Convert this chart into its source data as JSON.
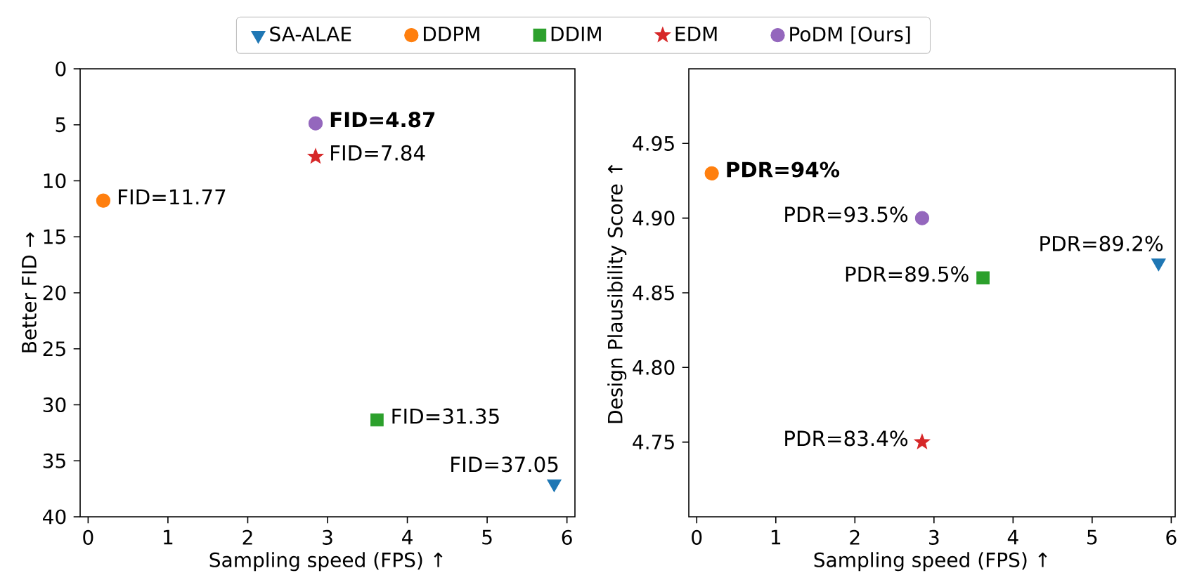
{
  "chart_data": [
    {
      "type": "scatter",
      "xlabel": "Sampling speed (FPS)  ↑",
      "ylabel": "Better FID →",
      "xlim": [
        -0.1,
        6.1
      ],
      "ylim": [
        40,
        0
      ],
      "xticks": [
        0,
        1,
        2,
        3,
        4,
        5,
        6
      ],
      "yticks": [
        0,
        5,
        10,
        15,
        20,
        25,
        30,
        35,
        40
      ],
      "legend": "top",
      "series": [
        {
          "name": "SA-ALAE",
          "color": "#1f77b4",
          "marker": "triangle",
          "x": [
            5.84
          ],
          "values": [
            37.05
          ],
          "value_labels": [
            "FID=37.05"
          ]
        },
        {
          "name": "DDPM",
          "color": "#ff7f0e",
          "marker": "circle",
          "x": [
            0.19
          ],
          "values": [
            11.77
          ],
          "value_labels": [
            "FID=11.77"
          ]
        },
        {
          "name": "DDIM",
          "color": "#2ca02c",
          "marker": "square",
          "x": [
            3.62
          ],
          "values": [
            31.35
          ],
          "value_labels": [
            "FID=31.35"
          ]
        },
        {
          "name": "EDM",
          "color": "#d62728",
          "marker": "star",
          "x": [
            2.85
          ],
          "values": [
            7.84
          ],
          "value_labels": [
            "FID=7.84"
          ]
        },
        {
          "name": "PoDM [Ours]",
          "color": "#9467bd",
          "marker": "circle",
          "x": [
            2.85
          ],
          "values": [
            4.87
          ],
          "value_labels": [
            "**FID=4.87**"
          ]
        }
      ]
    },
    {
      "type": "scatter",
      "xlabel": "Sampling speed (FPS)  ↑",
      "ylabel": "Design Plausibility Score ↑",
      "xlim": [
        -0.1,
        6.05
      ],
      "ylim": [
        4.7,
        5.0
      ],
      "xticks": [
        0,
        1,
        2,
        3,
        4,
        5,
        6
      ],
      "yticks": [
        4.75,
        {
          "value": 4.8,
          "label": "4.80"
        },
        4.85,
        {
          "value": 4.9,
          "label": "4.90"
        },
        4.95
      ],
      "series": [
        {
          "color": "#1f77b4",
          "marker": "triangle",
          "x": [
            5.84
          ],
          "values": [
            4.87
          ]
        },
        {
          "color": "#ff7f0e",
          "marker": "circle",
          "x": [
            0.19
          ],
          "values": [
            4.93
          ]
        },
        {
          "color": "#2ca02c",
          "marker": "square",
          "x": [
            3.62
          ],
          "values": [
            4.86
          ]
        },
        {
          "color": "#d62728",
          "marker": "star",
          "x": [
            2.85
          ],
          "values": [
            4.75
          ]
        },
        {
          "color": "#9467bd",
          "marker": "circle",
          "x": [
            2.85
          ],
          "values": [
            4.9
          ]
        }
      ],
      "annotations": [
        {
          "text": "PDR=89.2%",
          "x": 5.84,
          "y": 4.87
        },
        {
          "text": "**PDR=94%**",
          "x": 0.19,
          "y": 4.93
        },
        {
          "text": "PDR=89.5%",
          "x": 3.62,
          "y": 4.86
        },
        {
          "text": "PDR=83.4%",
          "x": 2.85,
          "y": 4.75
        },
        {
          "text": "PDR=93.5%",
          "x": 2.85,
          "y": 4.9
        }
      ]
    }
  ]
}
